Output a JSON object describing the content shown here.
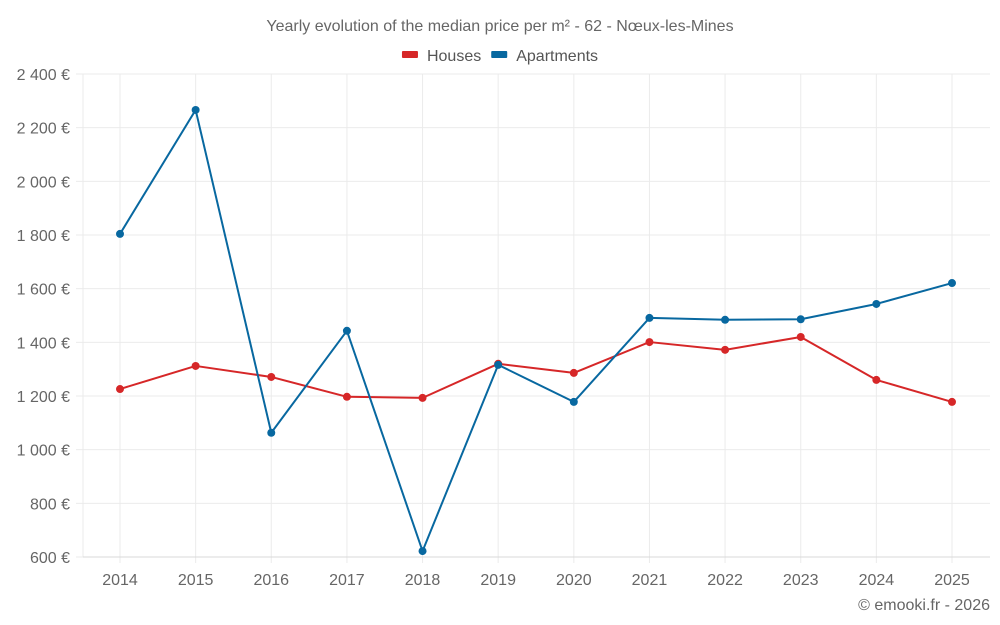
{
  "chart_data": {
    "type": "line",
    "title": "Yearly evolution of the median price per m² - 62 - Nœux-les-Mines",
    "xlabel": "",
    "ylabel": "",
    "categories": [
      "2014",
      "2015",
      "2016",
      "2017",
      "2018",
      "2019",
      "2020",
      "2021",
      "2022",
      "2023",
      "2024",
      "2025"
    ],
    "ylim": [
      600,
      2400
    ],
    "yticks": [
      600,
      800,
      1000,
      1200,
      1400,
      1600,
      1800,
      2000,
      2200,
      2400
    ],
    "ytick_labels": [
      "600 €",
      "800 €",
      "1 000 €",
      "1 200 €",
      "1 400 €",
      "1 600 €",
      "1 800 €",
      "2 000 €",
      "2 200 €",
      "2 400 €"
    ],
    "grid": true,
    "legend_position": "top-center",
    "series": [
      {
        "name": "Houses",
        "color": "#d62728",
        "values": [
          1226,
          1312,
          1271,
          1197,
          1193,
          1320,
          1286,
          1401,
          1372,
          1420,
          1260,
          1178
        ]
      },
      {
        "name": "Apartments",
        "color": "#0868a0",
        "values": [
          1804,
          2266,
          1063,
          1443,
          622,
          1316,
          1178,
          1491,
          1484,
          1486,
          1543,
          1621
        ]
      }
    ],
    "credit": "© emooki.fr - 2026"
  }
}
